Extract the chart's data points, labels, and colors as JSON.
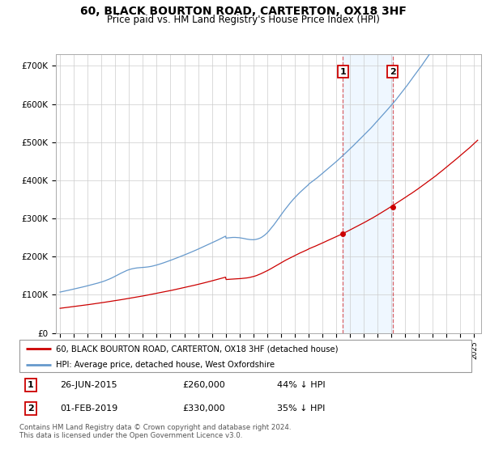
{
  "title": "60, BLACK BOURTON ROAD, CARTERTON, OX18 3HF",
  "subtitle": "Price paid vs. HM Land Registry's House Price Index (HPI)",
  "title_fontsize": 10,
  "subtitle_fontsize": 8.5,
  "ylabel_ticks": [
    "£0",
    "£100K",
    "£200K",
    "£300K",
    "£400K",
    "£500K",
    "£600K",
    "£700K"
  ],
  "ytick_vals": [
    0,
    100000,
    200000,
    300000,
    400000,
    500000,
    600000,
    700000
  ],
  "ylim": [
    0,
    730000
  ],
  "xlim_start": 1994.7,
  "xlim_end": 2025.5,
  "grid_color": "#cccccc",
  "background_color": "#ffffff",
  "plot_bg_color": "#ffffff",
  "hpi_color": "#6699cc",
  "sale_color": "#cc0000",
  "marker1_date": 2015.49,
  "marker1_price": 260000,
  "marker2_date": 2019.08,
  "marker2_price": 330000,
  "vline_color": "#cc0000",
  "shade_color": "#ddeeff",
  "shade_alpha": 0.45,
  "legend_label_sale": "60, BLACK BOURTON ROAD, CARTERTON, OX18 3HF (detached house)",
  "legend_label_hpi": "HPI: Average price, detached house, West Oxfordshire",
  "footnote": "Contains HM Land Registry data © Crown copyright and database right 2024.\nThis data is licensed under the Open Government Licence v3.0.",
  "table_rows": [
    {
      "num": "1",
      "date": "26-JUN-2015",
      "price": "£260,000",
      "pct": "44% ↓ HPI"
    },
    {
      "num": "2",
      "date": "01-FEB-2019",
      "price": "£330,000",
      "pct": "35% ↓ HPI"
    }
  ]
}
